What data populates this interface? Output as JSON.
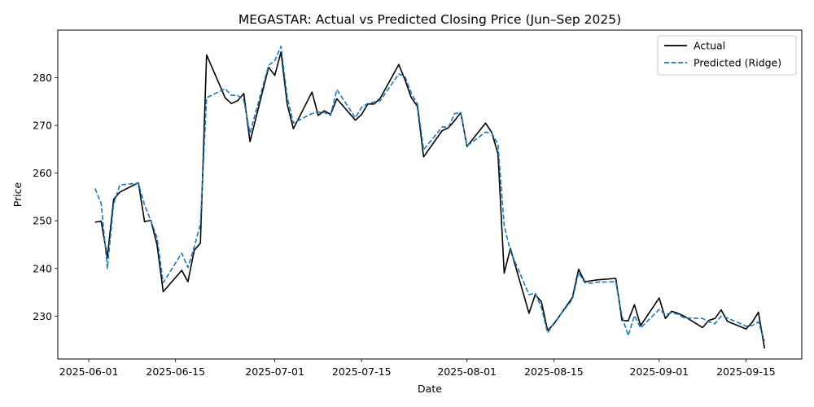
{
  "chart_data": {
    "type": "line",
    "title": "MEGASTAR: Actual vs Predicted Closing Price (Jun–Sep 2025)",
    "xlabel": "Date",
    "ylabel": "Price",
    "x_tick_labels": [
      "2025-06-01",
      "2025-06-15",
      "2025-07-01",
      "2025-07-15",
      "2025-08-01",
      "2025-08-15",
      "2025-09-01",
      "2025-09-15"
    ],
    "x_tick_dates": [
      "2025-06-01",
      "2025-06-15",
      "2025-07-01",
      "2025-07-15",
      "2025-08-01",
      "2025-08-15",
      "2025-09-01",
      "2025-09-15"
    ],
    "y_ticks": [
      230,
      240,
      250,
      260,
      270,
      280
    ],
    "xlim": [
      "2025-05-27",
      "2025-09-24"
    ],
    "ylim": [
      221,
      290
    ],
    "grid": false,
    "legend_position": "top-right",
    "series": [
      {
        "name": "Actual",
        "color": "#000000",
        "style": "solid",
        "x": [
          "2025-06-02",
          "2025-06-03",
          "2025-06-04",
          "2025-06-05",
          "2025-06-06",
          "2025-06-09",
          "2025-06-10",
          "2025-06-11",
          "2025-06-12",
          "2025-06-13",
          "2025-06-16",
          "2025-06-17",
          "2025-06-18",
          "2025-06-19",
          "2025-06-20",
          "2025-06-23",
          "2025-06-24",
          "2025-06-25",
          "2025-06-26",
          "2025-06-27",
          "2025-06-30",
          "2025-07-01",
          "2025-07-02",
          "2025-07-03",
          "2025-07-04",
          "2025-07-07",
          "2025-07-08",
          "2025-07-09",
          "2025-07-10",
          "2025-07-11",
          "2025-07-14",
          "2025-07-15",
          "2025-07-16",
          "2025-07-17",
          "2025-07-18",
          "2025-07-21",
          "2025-07-22",
          "2025-07-23",
          "2025-07-24",
          "2025-07-25",
          "2025-07-28",
          "2025-07-29",
          "2025-07-30",
          "2025-07-31",
          "2025-08-01",
          "2025-08-04",
          "2025-08-05",
          "2025-08-06",
          "2025-08-07",
          "2025-08-08",
          "2025-08-11",
          "2025-08-12",
          "2025-08-13",
          "2025-08-14",
          "2025-08-15",
          "2025-08-18",
          "2025-08-19",
          "2025-08-20",
          "2025-08-21",
          "2025-08-22",
          "2025-08-25",
          "2025-08-26",
          "2025-08-27",
          "2025-08-28",
          "2025-08-29",
          "2025-09-01",
          "2025-09-02",
          "2025-09-03",
          "2025-09-04",
          "2025-09-05",
          "2025-09-08",
          "2025-09-09",
          "2025-09-10",
          "2025-09-11",
          "2025-09-12",
          "2025-09-15",
          "2025-09-16",
          "2025-09-17",
          "2025-09-18"
        ],
        "y": [
          249.7,
          249.9,
          242.3,
          254.5,
          256.0,
          258.0,
          249.8,
          250.1,
          245.0,
          235.1,
          239.6,
          237.2,
          243.8,
          245.3,
          284.8,
          275.8,
          274.6,
          275.2,
          276.7,
          266.6,
          282.2,
          280.5,
          285.4,
          274.5,
          269.3,
          277.0,
          272.1,
          273.1,
          272.3,
          275.6,
          271.1,
          272.3,
          274.5,
          274.5,
          275.7,
          282.8,
          279.6,
          275.9,
          274.0,
          263.4,
          268.9,
          269.5,
          271.0,
          272.7,
          265.6,
          270.5,
          268.5,
          264.0,
          239.0,
          244.2,
          230.6,
          234.5,
          233.0,
          227.0,
          228.3,
          233.9,
          239.8,
          237.2,
          237.4,
          237.6,
          237.9,
          229.1,
          229.0,
          232.4,
          228.0,
          233.8,
          229.5,
          231.0,
          230.6,
          230.0,
          227.6,
          229.1,
          229.5,
          231.3,
          228.9,
          227.3,
          228.7,
          230.8,
          223.2
        ]
      },
      {
        "name": "Predicted (Ridge)",
        "color": "#1f77b4",
        "style": "dashed",
        "x": [
          "2025-06-02",
          "2025-06-03",
          "2025-06-04",
          "2025-06-05",
          "2025-06-06",
          "2025-06-09",
          "2025-06-10",
          "2025-06-11",
          "2025-06-12",
          "2025-06-13",
          "2025-06-16",
          "2025-06-17",
          "2025-06-18",
          "2025-06-19",
          "2025-06-20",
          "2025-06-23",
          "2025-06-24",
          "2025-06-25",
          "2025-06-26",
          "2025-06-27",
          "2025-06-30",
          "2025-07-01",
          "2025-07-02",
          "2025-07-03",
          "2025-07-04",
          "2025-07-07",
          "2025-07-08",
          "2025-07-09",
          "2025-07-10",
          "2025-07-11",
          "2025-07-14",
          "2025-07-15",
          "2025-07-16",
          "2025-07-17",
          "2025-07-18",
          "2025-07-21",
          "2025-07-22",
          "2025-07-23",
          "2025-07-24",
          "2025-07-25",
          "2025-07-28",
          "2025-07-29",
          "2025-07-30",
          "2025-07-31",
          "2025-08-01",
          "2025-08-04",
          "2025-08-05",
          "2025-08-06",
          "2025-08-07",
          "2025-08-08",
          "2025-08-11",
          "2025-08-12",
          "2025-08-13",
          "2025-08-14",
          "2025-08-15",
          "2025-08-18",
          "2025-08-19",
          "2025-08-20",
          "2025-08-21",
          "2025-08-22",
          "2025-08-25",
          "2025-08-26",
          "2025-08-27",
          "2025-08-28",
          "2025-08-29",
          "2025-09-01",
          "2025-09-02",
          "2025-09-03",
          "2025-09-04",
          "2025-09-05",
          "2025-09-08",
          "2025-09-09",
          "2025-09-10",
          "2025-09-11",
          "2025-09-12",
          "2025-09-15",
          "2025-09-16",
          "2025-09-17",
          "2025-09-18"
        ],
        "y": [
          256.8,
          253.6,
          240.0,
          253.5,
          257.5,
          257.9,
          253.3,
          250.0,
          246.5,
          237.0,
          243.2,
          240.2,
          244.5,
          249.3,
          275.8,
          277.7,
          276.3,
          276.3,
          275.3,
          268.4,
          282.6,
          283.6,
          286.6,
          276.0,
          270.5,
          272.5,
          272.8,
          272.7,
          272.1,
          277.5,
          271.6,
          273.8,
          274.6,
          274.9,
          275.2,
          280.8,
          280.3,
          276.8,
          274.5,
          264.9,
          269.7,
          269.6,
          272.5,
          272.7,
          265.7,
          268.6,
          268.4,
          266.0,
          249.0,
          243.7,
          234.5,
          234.8,
          231.8,
          226.5,
          228.5,
          233.5,
          239.1,
          237.0,
          236.9,
          237.1,
          237.2,
          230.0,
          225.9,
          230.1,
          227.5,
          231.4,
          230.3,
          230.7,
          230.4,
          229.6,
          229.5,
          228.8,
          228.4,
          230.0,
          229.6,
          227.9,
          228.0,
          228.8,
          224.8
        ]
      }
    ]
  }
}
